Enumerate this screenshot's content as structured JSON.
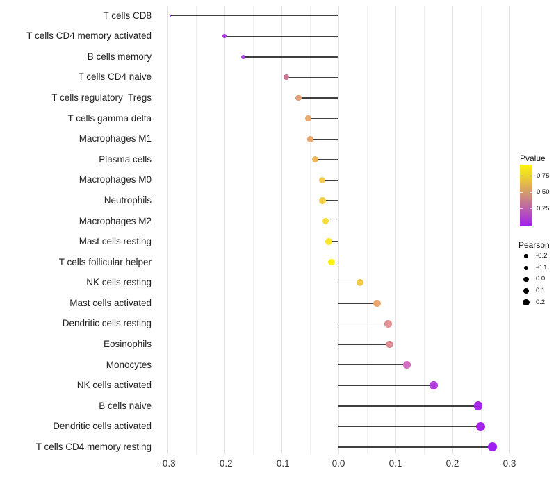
{
  "chart_data": {
    "type": "lollipop",
    "title": "",
    "xlabel": "",
    "ylabel": "",
    "xlim": [
      -0.335,
      0.31
    ],
    "baseline": 0.0,
    "grid": "vertical gridlines only, white background",
    "x_ticks": [
      -0.3,
      -0.2,
      -0.1,
      0.0,
      0.1,
      0.2,
      0.3
    ],
    "x_tick_labels": [
      "-0.3",
      "-0.2",
      "-0.1",
      "0.0",
      "0.1",
      "0.2",
      "0.3"
    ],
    "x_minor_ticks": [
      -0.25,
      -0.15,
      -0.05,
      0.05,
      0.15,
      0.25
    ],
    "points": [
      {
        "label": "T cells CD8",
        "pearson": -0.295,
        "color": "#8B2BE0"
      },
      {
        "label": "T cells CD4 memory activated",
        "pearson": -0.2,
        "color": "#A636E2"
      },
      {
        "label": "B cells memory",
        "pearson": -0.167,
        "color": "#AE42DF"
      },
      {
        "label": "T cells CD4 naive",
        "pearson": -0.091,
        "color": "#CD7090"
      },
      {
        "label": "T cells regulatory  Tregs",
        "pearson": -0.07,
        "color": "#E39F78"
      },
      {
        "label": "T cells gamma delta",
        "pearson": -0.053,
        "color": "#E9A969"
      },
      {
        "label": "Macrophages M1",
        "pearson": -0.049,
        "color": "#E7A76D"
      },
      {
        "label": "Plasma cells",
        "pearson": -0.041,
        "color": "#EFB95A"
      },
      {
        "label": "Macrophages M0",
        "pearson": -0.029,
        "color": "#F3CD4A"
      },
      {
        "label": "Neutrophils",
        "pearson": -0.028,
        "color": "#F4D047"
      },
      {
        "label": "Macrophages M2",
        "pearson": -0.023,
        "color": "#F7DD39"
      },
      {
        "label": "Mast cells resting",
        "pearson": -0.017,
        "color": "#F9E72E"
      },
      {
        "label": "T cells follicular helper",
        "pearson": -0.012,
        "color": "#FCF31B"
      },
      {
        "label": "NK cells resting",
        "pearson": 0.038,
        "color": "#F0C84F"
      },
      {
        "label": "Mast cells activated",
        "pearson": 0.068,
        "color": "#ECA870"
      },
      {
        "label": "Dendritic cells resting",
        "pearson": 0.087,
        "color": "#E39097"
      },
      {
        "label": "Eosinophils",
        "pearson": 0.09,
        "color": "#E08A92"
      },
      {
        "label": "Monocytes",
        "pearson": 0.12,
        "color": "#D26CBE"
      },
      {
        "label": "NK cells activated",
        "pearson": 0.167,
        "color": "#B23BDE"
      },
      {
        "label": "B cells naive",
        "pearson": 0.245,
        "color": "#A526E9"
      },
      {
        "label": "Dendritic cells activated",
        "pearson": 0.249,
        "color": "#A424EA"
      },
      {
        "label": "T cells CD4 memory resting",
        "pearson": 0.27,
        "color": "#A01FF0"
      }
    ],
    "legend": {
      "pvalue": {
        "title": "Pvalue",
        "tick_labels": [
          "0.75",
          "0.50",
          "0.25"
        ],
        "gradient_top_to_bottom": [
          "#FCF50A",
          "#E7C73C",
          "#D09078",
          "#B858B4",
          "#A020F0"
        ]
      },
      "pearson": {
        "title": "Pearson",
        "size_labels": [
          "-0.2",
          "-0.1",
          "0.0",
          "0.1",
          "0.2"
        ]
      }
    }
  }
}
